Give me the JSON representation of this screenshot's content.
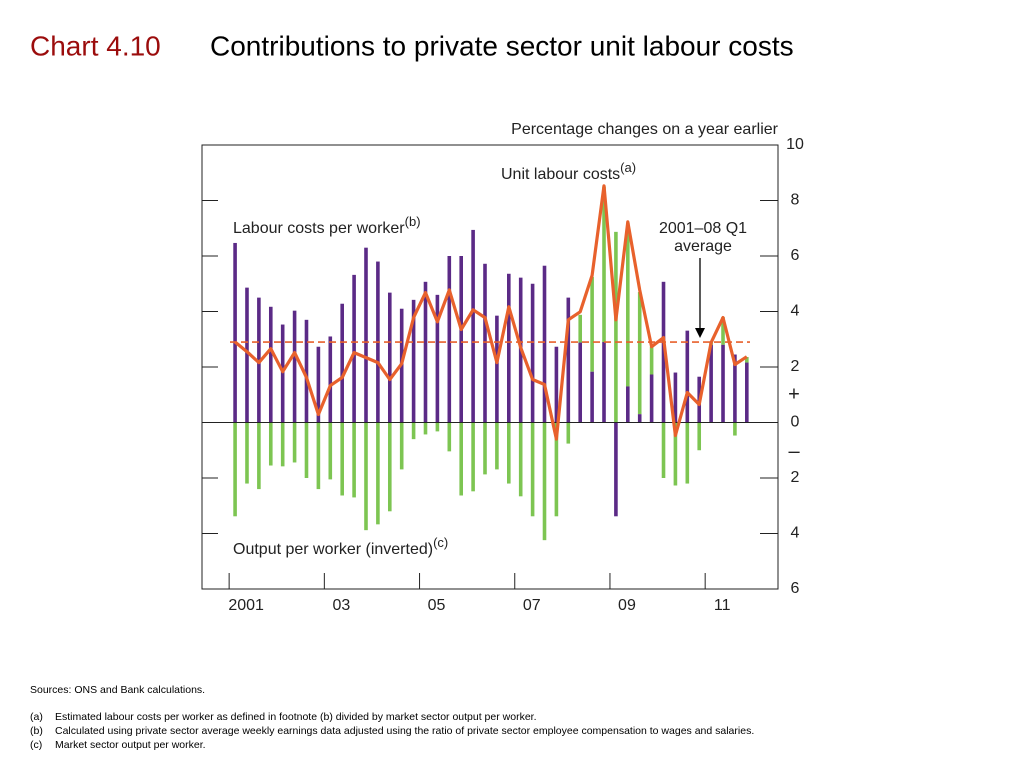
{
  "chart_data": {
    "type": "bar_line",
    "title_prefix": "Chart 4.10",
    "title": "Contributions to private sector unit labour costs",
    "y_axis_label": "Percentage changes on a year earlier",
    "sign_plus": "+",
    "sign_minus": "–",
    "x": [
      2001.125,
      2001.375,
      2001.625,
      2001.875,
      2002.125,
      2002.375,
      2002.625,
      2002.875,
      2003.125,
      2003.375,
      2003.625,
      2003.875,
      2004.125,
      2004.375,
      2004.625,
      2004.875,
      2005.125,
      2005.375,
      2005.625,
      2005.875,
      2006.125,
      2006.375,
      2006.625,
      2006.875,
      2007.125,
      2007.375,
      2007.625,
      2007.875,
      2008.125,
      2008.375,
      2008.625,
      2008.875,
      2009.125,
      2009.375,
      2009.625,
      2009.875,
      2010.125,
      2010.375,
      2010.625,
      2010.875,
      2011.125,
      2011.375,
      2011.625,
      2011.875
    ],
    "series": [
      {
        "name": "Labour costs per worker",
        "note_ref": "(b)",
        "kind": "bar",
        "color": "#5b2a86",
        "values": [
          6.47,
          4.86,
          4.5,
          4.17,
          3.53,
          4.03,
          3.7,
          2.73,
          3.1,
          4.28,
          5.32,
          6.3,
          5.8,
          4.68,
          4.1,
          4.42,
          5.07,
          4.6,
          6.0,
          6.0,
          6.94,
          5.72,
          3.85,
          5.36,
          5.22,
          5.0,
          5.65,
          2.73,
          4.5,
          2.88,
          1.83,
          2.9,
          -3.38,
          1.3,
          0.3,
          1.73,
          5.07,
          1.8,
          3.31,
          1.65,
          2.8,
          2.8,
          2.45,
          2.16
        ]
      },
      {
        "name": "Output per worker (inverted)",
        "note_ref": "(c)",
        "kind": "bar",
        "color": "#7dc552",
        "values": [
          -3.38,
          -2.2,
          -2.4,
          -1.55,
          -1.58,
          -1.44,
          -2.0,
          -2.4,
          -2.05,
          -2.63,
          -2.7,
          -3.88,
          -3.67,
          -3.2,
          -1.69,
          -0.6,
          -0.43,
          -0.32,
          -1.04,
          -2.63,
          -2.48,
          -1.87,
          -1.69,
          -2.2,
          -2.66,
          -3.38,
          -4.24,
          -3.38,
          -0.76,
          1.0,
          3.42,
          5.6,
          6.87,
          5.9,
          4.4,
          1.0,
          -2.0,
          -2.27,
          -2.2,
          -1.0,
          0.1,
          1.0,
          -0.47,
          0.2
        ]
      },
      {
        "name": "Unit labour costs",
        "note_ref": "(a)",
        "kind": "line",
        "color": "#e8612c",
        "values": [
          2.9,
          2.55,
          2.16,
          2.66,
          1.83,
          2.52,
          1.62,
          0.29,
          1.33,
          1.62,
          2.52,
          2.34,
          2.16,
          1.55,
          2.12,
          3.78,
          4.68,
          3.63,
          4.78,
          3.35,
          4.06,
          3.78,
          2.16,
          4.17,
          2.7,
          1.55,
          1.37,
          -0.6,
          3.7,
          3.99,
          5.3,
          8.53,
          3.7,
          7.23,
          4.78,
          2.73,
          3.06,
          -0.47,
          1.08,
          0.65,
          2.88,
          3.78,
          2.09,
          2.37
        ]
      }
    ],
    "average": {
      "label": [
        "2001–08 Q1",
        "average"
      ],
      "value": 2.9,
      "color": "#e8612c"
    },
    "xlim": [
      2000.43,
      2012.53
    ],
    "xticks": [
      {
        "value": 2001,
        "label": "2001"
      },
      {
        "value": 2003,
        "label": "03"
      },
      {
        "value": 2005,
        "label": "05"
      },
      {
        "value": 2007,
        "label": "07"
      },
      {
        "value": 2009,
        "label": "09"
      },
      {
        "value": 2011,
        "label": "11"
      }
    ],
    "ylim": [
      -6,
      10
    ],
    "yticks": [
      {
        "value": -6,
        "label": "6"
      },
      {
        "value": -4,
        "label": "4"
      },
      {
        "value": -2,
        "label": "2"
      },
      0,
      2,
      4,
      6,
      8,
      10
    ],
    "sources": "Sources:  ONS and Bank calculations.",
    "notes": [
      {
        "marker": "(a)",
        "text": "Estimated labour costs per worker as defined in footnote (b) divided by market sector output per worker."
      },
      {
        "marker": "(b)",
        "text": "Calculated using private sector average weekly earnings data adjusted using the ratio of private sector employee compensation to wages and salaries."
      },
      {
        "marker": "(c)",
        "text": "Market sector output per worker."
      }
    ]
  }
}
